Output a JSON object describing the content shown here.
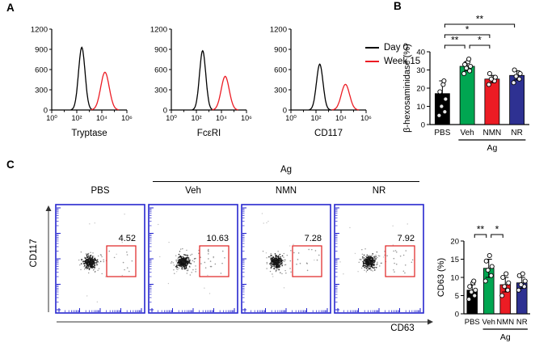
{
  "panels": {
    "a": "A",
    "b": "B",
    "c": "C"
  },
  "legend": {
    "items": [
      {
        "label": "Day 0",
        "color": "#000000"
      },
      {
        "label": "Week 15",
        "color": "#EC1C24"
      }
    ]
  },
  "chart_data": [
    {
      "id": "hist-tryptase",
      "type": "line",
      "subtype": "flow-histogram-overlay",
      "title": "Tryptase",
      "xlim_log": [
        0,
        6
      ],
      "ylim": [
        0,
        1200
      ],
      "x_ticks": [
        "10⁰",
        "10²",
        "10⁴",
        "10⁶"
      ],
      "y_ticks": [
        0,
        300,
        600,
        900,
        1200
      ],
      "series": [
        {
          "name": "Day 0",
          "color": "#000000",
          "peak_log": 2.4,
          "peak_height": 930,
          "sigma": 0.26
        },
        {
          "name": "Week 15",
          "color": "#EC1C24",
          "peak_log": 4.25,
          "peak_height": 560,
          "sigma": 0.34
        }
      ]
    },
    {
      "id": "hist-fceri",
      "type": "line",
      "subtype": "flow-histogram-overlay",
      "title": "FcεRI",
      "xlim_log": [
        0,
        6
      ],
      "ylim": [
        0,
        1200
      ],
      "x_ticks": [
        "10⁰",
        "10²",
        "10⁴",
        "10⁶"
      ],
      "y_ticks": [
        0,
        300,
        600,
        900,
        1200
      ],
      "series": [
        {
          "name": "Day 0",
          "color": "#000000",
          "peak_log": 2.5,
          "peak_height": 880,
          "sigma": 0.25
        },
        {
          "name": "Week 15",
          "color": "#EC1C24",
          "peak_log": 4.3,
          "peak_height": 500,
          "sigma": 0.32
        }
      ]
    },
    {
      "id": "hist-cd117",
      "type": "line",
      "subtype": "flow-histogram-overlay",
      "title": "CD117",
      "xlim_log": [
        0,
        6
      ],
      "ylim": [
        0,
        1200
      ],
      "x_ticks": [
        "10⁰",
        "10²",
        "10⁴",
        "10⁶"
      ],
      "y_ticks": [
        0,
        300,
        600,
        900,
        1200
      ],
      "series": [
        {
          "name": "Day 0",
          "color": "#000000",
          "peak_log": 2.3,
          "peak_height": 680,
          "sigma": 0.26
        },
        {
          "name": "Week 15",
          "color": "#EC1C24",
          "peak_log": 4.35,
          "peak_height": 380,
          "sigma": 0.33
        }
      ]
    },
    {
      "id": "bar-hexosaminidase",
      "type": "bar",
      "ylabel": "β-hexosaminidase (%)",
      "ylim": [
        0,
        40
      ],
      "y_ticks": [
        0,
        10,
        20,
        30,
        40
      ],
      "categories": [
        "PBS",
        "Veh",
        "NMN",
        "NR"
      ],
      "values": [
        17,
        32,
        25,
        27
      ],
      "errors": [
        7,
        2.5,
        2,
        2.5
      ],
      "colors": [
        "#000000",
        "#00A651",
        "#EC1C24",
        "#2E3192"
      ],
      "points": [
        [
          5,
          7,
          10,
          14,
          18,
          22,
          24
        ],
        [
          28,
          29.5,
          31,
          32,
          33,
          34.5,
          36
        ],
        [
          22,
          24,
          25,
          26,
          28
        ],
        [
          23,
          25,
          26.5,
          28,
          30
        ]
      ],
      "group": {
        "label": "Ag",
        "from": 1,
        "to": 3
      },
      "brackets": [
        {
          "from": 0,
          "to": 1,
          "label": "**",
          "level": 0
        },
        {
          "from": 1,
          "to": 2,
          "label": "*",
          "level": 0
        },
        {
          "from": 0,
          "to": 2,
          "label": "*",
          "level": 1
        },
        {
          "from": 0,
          "to": 3,
          "label": "**",
          "level": 2
        }
      ]
    },
    {
      "id": "flow-cd63-dotplots",
      "type": "scatter",
      "subtype": "flow-dot-plot-row",
      "xlabel": "CD63",
      "ylabel": "CD117",
      "frame_color": "#2626CF",
      "gate_color": "#E02020",
      "group": {
        "label": "Ag",
        "from": 1,
        "to": 3
      },
      "plots": [
        {
          "label": "PBS",
          "gate_pct": "4.52"
        },
        {
          "label": "Veh",
          "gate_pct": "10.63"
        },
        {
          "label": "NMN",
          "gate_pct": "7.28"
        },
        {
          "label": "NR",
          "gate_pct": "7.92"
        }
      ]
    },
    {
      "id": "bar-cd63",
      "type": "bar",
      "ylabel": "CD63 (%)",
      "ylim": [
        0,
        20
      ],
      "y_ticks": [
        0,
        5,
        10,
        15,
        20
      ],
      "categories": [
        "PBS",
        "Veh",
        "NMN",
        "NR"
      ],
      "values": [
        6.5,
        12.5,
        8,
        8.5
      ],
      "errors": [
        1.5,
        2.5,
        2,
        1.5
      ],
      "colors": [
        "#000000",
        "#00A651",
        "#EC1C24",
        "#2E3192"
      ],
      "points": [
        [
          4,
          5,
          6,
          6.5,
          7.5,
          8.5,
          9
        ],
        [
          9,
          10.5,
          12,
          13,
          14.5,
          16
        ],
        [
          5,
          6.5,
          7.5,
          8.5,
          10,
          11
        ],
        [
          6.5,
          7.5,
          8,
          9,
          10.5,
          11
        ]
      ],
      "group": {
        "label": "Ag",
        "from": 1,
        "to": 3
      },
      "brackets": [
        {
          "from": 0,
          "to": 1,
          "label": "**",
          "level": 0
        },
        {
          "from": 1,
          "to": 2,
          "label": "*",
          "level": 0
        }
      ]
    }
  ]
}
